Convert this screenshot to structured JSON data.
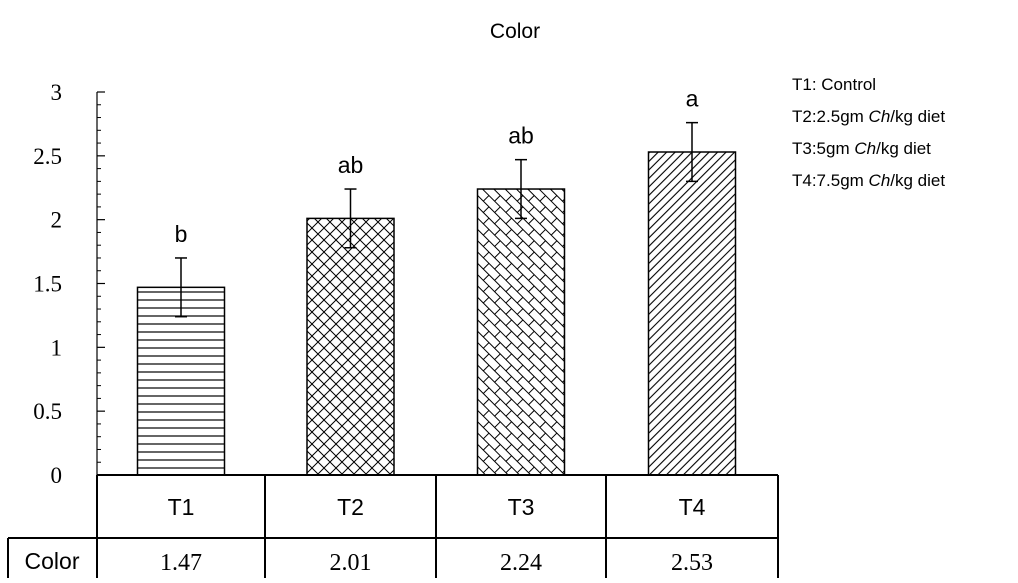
{
  "chart_data": {
    "type": "bar",
    "title": "Color",
    "categories": [
      "T1",
      "T2",
      "T3",
      "T4"
    ],
    "series": [
      {
        "name": "Color",
        "values": [
          1.47,
          2.01,
          2.24,
          2.53
        ],
        "errors": [
          0.23,
          0.23,
          0.23,
          0.23
        ],
        "significance": [
          "b",
          "ab",
          "ab",
          "a"
        ],
        "patterns": [
          "horizontal-lines",
          "crosshatch",
          "brick",
          "diagonal-lines"
        ],
        "table_values": [
          "1.47",
          "2.01",
          "2.24",
          "2.53"
        ]
      }
    ],
    "ylim": [
      0,
      3
    ],
    "y_ticks": [
      "0",
      "0.5",
      "1",
      "1.5",
      "2",
      "2.5",
      "3"
    ],
    "legend_position": "right",
    "legend_entries": [
      {
        "prefix": "T1: Control",
        "italic": "",
        "suffix": ""
      },
      {
        "prefix": "T2:2.5gm ",
        "italic": "Ch",
        "suffix": "/kg diet"
      },
      {
        "prefix": "T3:5gm ",
        "italic": "Ch",
        "suffix": "/kg diet"
      },
      {
        "prefix": "T4:7.5gm ",
        "italic": "Ch",
        "suffix": "/kg diet"
      }
    ],
    "grid": false,
    "colors": {
      "bar_fill": "#ffffff",
      "stroke": "#000000",
      "text": "#000000"
    }
  }
}
